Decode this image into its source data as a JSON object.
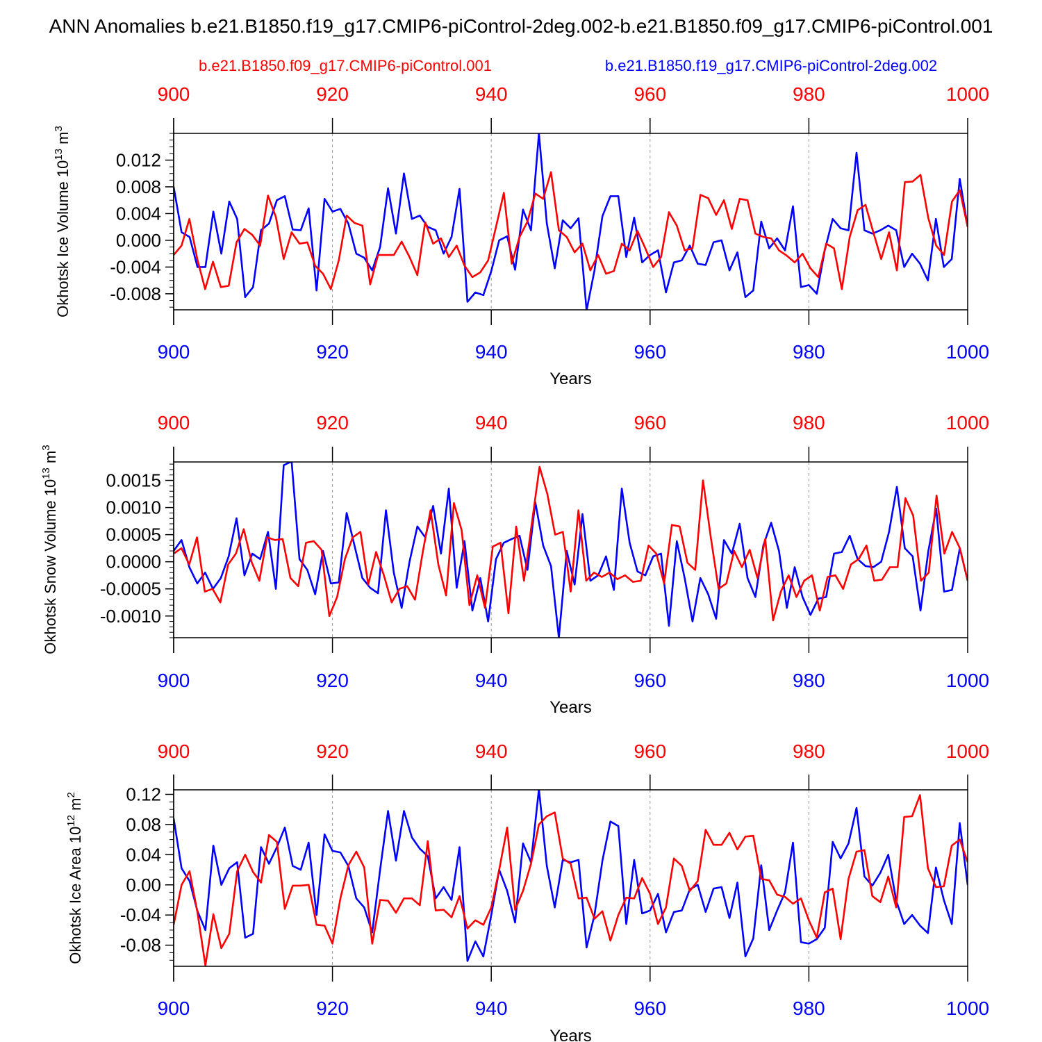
{
  "title": "ANN Anomalies b.e21.B1850.f19_g17.CMIP6-piControl-2deg.002-b.e21.B1850.f09_g17.CMIP6-piControl.001",
  "legend": {
    "red_label": "b.e21.B1850.f09_g17.CMIP6-piControl.001",
    "blue_label": "b.e21.B1850.f19_g17.CMIP6-piControl-2deg.002"
  },
  "colors": {
    "red": "#ff0000",
    "blue": "#0000ff",
    "axis": "#000000",
    "grid": "#999999"
  },
  "chart_data": [
    {
      "type": "line",
      "panel_id": "ice-volume",
      "ylabel_main": "Okhotsk Ice Volume 10",
      "ylabel_exp": "13",
      "ylabel_unit": " m",
      "ylabel_unit_exp": "3",
      "xlabel": "Years",
      "xlim": [
        900,
        1000
      ],
      "ylim": [
        -0.0104,
        0.016
      ],
      "yticks": [
        -0.008,
        -0.004,
        0.0,
        0.004,
        0.008,
        0.012
      ],
      "ytick_labels": [
        "-0.008",
        "-0.004",
        "0.000",
        "0.004",
        "0.008",
        "0.012"
      ],
      "yminor_step": 0.001,
      "xticks": [
        900,
        920,
        940,
        960,
        980,
        1000
      ],
      "xtick_labels": [
        "900",
        "920",
        "940",
        "960",
        "980",
        "1000"
      ],
      "top_xtick_labels": [
        "900",
        "920",
        "940",
        "960",
        "980",
        "1000"
      ],
      "series": [
        {
          "name": "b.e21.B1850.f19_g17.CMIP6-piControl-2deg.002",
          "color": "blue",
          "values": [
            0.008,
            0.0012,
            0.0005,
            -0.004,
            -0.004,
            0.0043,
            -0.002,
            0.0058,
            0.0032,
            -0.0085,
            -0.007,
            0.0015,
            0.0025,
            0.006,
            0.0066,
            0.0016,
            0.0015,
            0.0048,
            -0.0075,
            0.0062,
            0.0043,
            0.0047,
            0.0025,
            -0.002,
            -0.0026,
            -0.0045,
            -0.001,
            0.0078,
            0.001,
            0.01,
            0.0032,
            0.0037,
            0.002,
            0.0015,
            -0.002,
            0.0005,
            0.0077,
            -0.0092,
            -0.0078,
            -0.0082,
            -0.0046,
            0.0,
            0.0006,
            -0.0044,
            0.0046,
            0.0015,
            0.016,
            0.0025,
            -0.0042,
            0.003,
            0.0018,
            0.0033,
            -0.0105,
            -0.0045,
            0.0036,
            0.0066,
            0.0066,
            -0.0025,
            0.0034,
            -0.0033,
            -0.0022,
            -0.0015,
            -0.0078,
            -0.0033,
            -0.003,
            -0.0008,
            -0.0035,
            -0.0037,
            -0.0003,
            0.0,
            -0.0045,
            -0.0018,
            -0.0085,
            -0.0075,
            0.0028,
            -0.0012,
            0.0003,
            -0.0015,
            0.0051,
            -0.007,
            -0.0067,
            -0.008,
            -0.0015,
            0.0032,
            0.0018,
            0.0015,
            0.0131,
            0.0015,
            0.001,
            0.0015,
            0.0022,
            0.0015,
            -0.004,
            -0.002,
            -0.0035,
            -0.006,
            0.0032,
            -0.004,
            -0.0028,
            0.0092,
            0.002
          ]
        },
        {
          "name": "b.e21.B1850.f09_g17.CMIP6-piControl.001",
          "color": "red",
          "values": [
            -0.0022,
            -0.0008,
            0.0032,
            -0.0028,
            -0.0073,
            -0.0032,
            -0.007,
            -0.0068,
            -0.0003,
            0.0017,
            0.0008,
            -0.0008,
            0.0067,
            0.0035,
            -0.0028,
            0.0012,
            -0.0005,
            -0.0003,
            -0.0038,
            -0.005,
            -0.0073,
            -0.003,
            0.0037,
            0.0026,
            0.0022,
            -0.0066,
            -0.0022,
            -0.0022,
            -0.0022,
            -0.0002,
            -0.0025,
            -0.0052,
            0.0027,
            -0.0005,
            0.0003,
            -0.0025,
            -0.0008,
            -0.0038,
            -0.0055,
            -0.0048,
            -0.003,
            0.002,
            0.0071,
            -0.0035,
            0.0005,
            0.0028,
            0.007,
            0.0062,
            0.0102,
            0.0015,
            0.0005,
            -0.0018,
            -0.0005,
            -0.0045,
            -0.0022,
            -0.005,
            -0.0046,
            -0.0005,
            -0.0015,
            0.0014,
            -0.0012,
            -0.004,
            -0.0025,
            0.0042,
            0.0022,
            -0.0015,
            -0.0012,
            0.0068,
            0.0063,
            0.0038,
            0.006,
            0.0017,
            0.0062,
            0.006,
            0.001,
            0.0005,
            0.0003,
            -0.0015,
            -0.0023,
            -0.0033,
            -0.002,
            -0.0042,
            -0.0055,
            -0.0005,
            -0.0012,
            -0.0073,
            0.0005,
            0.0045,
            0.0053,
            0.0012,
            -0.0028,
            0.0012,
            -0.0045,
            0.0087,
            0.0088,
            0.0098,
            0.0033,
            -0.0008,
            -0.0022,
            0.0058,
            0.0075,
            0.002
          ]
        }
      ]
    },
    {
      "type": "line",
      "panel_id": "snow-volume",
      "ylabel_main": "Okhotsk Snow Volume 10",
      "ylabel_exp": "13",
      "ylabel_unit": " m",
      "ylabel_unit_exp": "3",
      "xlabel": "Years",
      "xlim": [
        900,
        1000
      ],
      "ylim": [
        -0.0014,
        0.00184
      ],
      "yticks": [
        -0.001,
        -0.0005,
        0.0,
        0.0005,
        0.001,
        0.0015
      ],
      "ytick_labels": [
        "-0.0010",
        "-0.0005",
        "0.0000",
        "0.0005",
        "0.0010",
        "0.0015"
      ],
      "yminor_step": 0.0001,
      "xticks": [
        900,
        920,
        940,
        960,
        980,
        1000
      ],
      "xtick_labels": [
        "900",
        "920",
        "940",
        "960",
        "980",
        "1000"
      ],
      "top_xtick_labels": [
        "900",
        "920",
        "940",
        "960",
        "980",
        "1000"
      ],
      "series": [
        {
          "name": "b.e21.B1850.f19_g17.CMIP6-piControl-2deg.002",
          "color": "blue",
          "values": [
            0.0002,
            0.0004,
            -0.0001,
            -0.0004,
            -0.0002,
            -0.0005,
            -0.0003,
            0.0001,
            0.0008,
            -0.00025,
            0.00015,
            5e-05,
            0.00055,
            -0.0005,
            0.00178,
            0.00185,
            5e-05,
            -0.00015,
            -0.0006,
            0.0002,
            -0.0004,
            -0.00038,
            0.0009,
            0.0003,
            -0.0003,
            -0.00048,
            -0.00058,
            0.00095,
            -0.0002,
            -0.00085,
            0.0,
            0.00065,
            0.00045,
            0.00103,
            0.00015,
            0.00135,
            -0.00048,
            0.00038,
            -0.0009,
            -0.0003,
            -0.0011,
            5e-05,
            0.00035,
            0.00042,
            0.00048,
            -0.00015,
            0.0011,
            0.0003,
            -8e-05,
            -0.0014,
            0.0002,
            -0.00042,
            0.00088,
            -0.00035,
            -0.00025,
            0.0001,
            -0.00052,
            0.00135,
            0.00035,
            -0.00018,
            -0.00025,
            0.0001,
            0.00015,
            -0.00118,
            0.00038,
            -0.0003,
            -0.0011,
            -0.0003,
            -0.0006,
            -0.00105,
            0.0004,
            0.00015,
            0.0007,
            -0.0003,
            -0.00065,
            0.0003,
            0.00072,
            0.0002,
            -0.00085,
            -0.0001,
            -0.00065,
            -0.00098,
            -0.00068,
            -0.00065,
            0.00015,
            0.00018,
            0.00048,
            5e-05,
            -8e-05,
            -0.0001,
            0.0,
            0.00055,
            0.00138,
            0.00025,
            0.0001,
            -0.0009,
            0.0002,
            0.00098,
            -0.00055,
            -0.00052,
            0.00025,
            -0.00035
          ]
        },
        {
          "name": "b.e21.B1850.f09_g17.CMIP6-piControl.001",
          "color": "red",
          "values": [
            0.00015,
            0.00025,
            -5e-05,
            0.00045,
            -0.00055,
            -0.0005,
            -0.00075,
            -5e-05,
            0.00015,
            0.0006,
            0.0,
            -0.00035,
            0.00045,
            0.0004,
            0.00042,
            -0.0003,
            -0.00045,
            0.00035,
            0.00038,
            0.00022,
            -0.001,
            -0.00065,
            5e-05,
            0.00045,
            0.00055,
            -0.00042,
            0.00018,
            -0.00025,
            -0.00075,
            -0.0005,
            -0.00045,
            -0.0007,
            0.00018,
            0.00095,
            -5e-05,
            -0.00062,
            0.00108,
            0.00058,
            -0.0008,
            -0.00025,
            -0.00085,
            0.00028,
            0.00035,
            -0.00095,
            0.00065,
            -0.00035,
            0.0007,
            0.00175,
            0.00125,
            0.0005,
            0.00055,
            -0.00055,
            0.00095,
            -0.00035,
            -0.0002,
            -0.00028,
            -0.0002,
            -0.00032,
            -0.00025,
            -0.00037,
            -0.00035,
            0.0003,
            0.00015,
            -0.0004,
            0.00068,
            0.00065,
            -2e-05,
            -0.00015,
            0.0015,
            0.00045,
            -0.0005,
            -0.0004,
            0.0002,
            -0.0001,
            0.00022,
            -0.0003,
            0.00042,
            -0.00108,
            -0.00055,
            -0.00025,
            -0.00065,
            -0.00035,
            -0.00025,
            -0.0009,
            -0.00028,
            -0.00025,
            -0.0005,
            -5e-05,
            5e-05,
            0.0003,
            -0.00035,
            -0.00033,
            -0.0001,
            -0.0001,
            0.00117,
            0.00085,
            -0.00035,
            -0.0002,
            0.00122,
            0.00015,
            0.00055,
            0.00025,
            -0.00035
          ]
        }
      ]
    },
    {
      "type": "line",
      "panel_id": "ice-area",
      "ylabel_main": "Okhotsk Ice Area 10",
      "ylabel_exp": "12",
      "ylabel_unit": " m",
      "ylabel_unit_exp": "2",
      "xlabel": "Years",
      "xlim": [
        900,
        1000
      ],
      "ylim": [
        -0.108,
        0.126
      ],
      "yticks": [
        -0.08,
        -0.04,
        0.0,
        0.04,
        0.08,
        0.12
      ],
      "ytick_labels": [
        "-0.08",
        "-0.04",
        "0.00",
        "0.04",
        "0.08",
        "0.12"
      ],
      "yminor_step": 0.01,
      "xticks": [
        900,
        920,
        940,
        960,
        980,
        1000
      ],
      "xtick_labels": [
        "900",
        "920",
        "940",
        "960",
        "980",
        "1000"
      ],
      "top_xtick_labels": [
        "900",
        "920",
        "940",
        "960",
        "980",
        "1000"
      ],
      "series": [
        {
          "name": "b.e21.B1850.f19_g17.CMIP6-piControl-2deg.002",
          "color": "blue",
          "values": [
            0.088,
            0.022,
            0.005,
            -0.035,
            -0.06,
            0.052,
            0.0,
            0.022,
            0.03,
            -0.07,
            -0.065,
            0.05,
            0.028,
            0.05,
            0.076,
            0.025,
            0.02,
            0.056,
            -0.04,
            0.067,
            0.045,
            0.043,
            0.025,
            -0.018,
            -0.03,
            -0.063,
            0.02,
            0.098,
            0.032,
            0.098,
            0.063,
            0.048,
            0.038,
            -0.018,
            -0.003,
            -0.02,
            0.05,
            -0.101,
            -0.075,
            -0.095,
            -0.04,
            0.02,
            -0.008,
            -0.05,
            0.055,
            0.03,
            0.127,
            0.025,
            -0.03,
            0.033,
            0.03,
            0.033,
            -0.083,
            -0.04,
            0.032,
            0.084,
            0.078,
            -0.052,
            0.033,
            -0.038,
            -0.034,
            -0.012,
            -0.063,
            -0.036,
            -0.034,
            -0.006,
            0.0,
            -0.036,
            -0.005,
            -0.003,
            -0.044,
            0.003,
            -0.095,
            -0.071,
            0.026,
            -0.06,
            -0.034,
            -0.01,
            0.056,
            -0.076,
            -0.078,
            -0.072,
            -0.057,
            0.057,
            0.035,
            0.055,
            0.102,
            0.011,
            -0.001,
            0.016,
            0.04,
            -0.021,
            -0.052,
            -0.04,
            -0.054,
            -0.064,
            0.023,
            -0.02,
            -0.052,
            0.082,
            0.0
          ]
        },
        {
          "name": "b.e21.B1850.f09_g17.CMIP6-piControl.001",
          "color": "red",
          "values": [
            -0.053,
            0.0,
            0.018,
            -0.037,
            -0.107,
            -0.039,
            -0.084,
            -0.065,
            0.018,
            0.04,
            0.017,
            0.003,
            0.066,
            0.057,
            -0.032,
            -0.001,
            -0.001,
            0.0,
            -0.053,
            -0.054,
            -0.078,
            -0.018,
            0.026,
            0.044,
            0.023,
            -0.078,
            -0.02,
            -0.021,
            -0.037,
            -0.018,
            -0.018,
            -0.027,
            0.058,
            -0.034,
            -0.033,
            -0.043,
            -0.015,
            -0.058,
            -0.047,
            -0.053,
            -0.03,
            0.02,
            0.076,
            -0.033,
            -0.008,
            0.028,
            0.08,
            0.091,
            0.096,
            0.035,
            0.028,
            -0.018,
            -0.017,
            -0.045,
            -0.035,
            -0.074,
            -0.04,
            -0.017,
            -0.018,
            0.009,
            -0.012,
            -0.052,
            -0.03,
            0.035,
            0.025,
            -0.008,
            0.005,
            0.073,
            0.053,
            0.053,
            0.069,
            0.047,
            0.064,
            0.065,
            0.008,
            0.006,
            -0.013,
            -0.016,
            -0.025,
            -0.018,
            -0.047,
            -0.07,
            -0.01,
            -0.005,
            -0.072,
            0.008,
            0.044,
            0.046,
            -0.015,
            -0.023,
            0.011,
            -0.03,
            0.09,
            0.091,
            0.119,
            0.022,
            -0.003,
            -0.002,
            0.052,
            0.06,
            0.03
          ]
        }
      ]
    }
  ]
}
